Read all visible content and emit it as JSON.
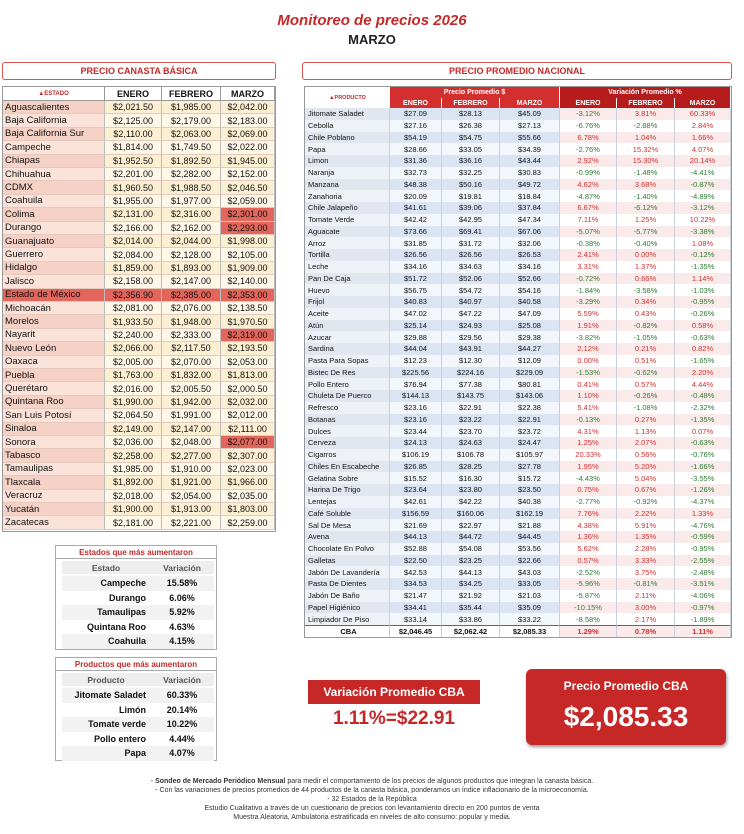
{
  "header": {
    "title": "Monitoreo de precios 2026",
    "subtitle": "MARZO"
  },
  "states_table": {
    "title": "PRECIO CANASTA BÁSICA",
    "columns": [
      "▲ESTADO",
      "ENERO",
      "FEBRERO",
      "MARZO"
    ],
    "rows": [
      [
        "Aguascalientes",
        "$2,021.50",
        "$1,985.00",
        "$2,042.00"
      ],
      [
        "Baja California",
        "$2,125.00",
        "$2,179.00",
        "$2,183.00"
      ],
      [
        "Baja California Sur",
        "$2,110.00",
        "$2,063.00",
        "$2,069.00"
      ],
      [
        "Campeche",
        "$1,814.00",
        "$1,749.50",
        "$2,022.00"
      ],
      [
        "Chiapas",
        "$1,952.50",
        "$1,892.50",
        "$1,945.00"
      ],
      [
        "Chihuahua",
        "$2,201.00",
        "$2,282.00",
        "$2,152.00"
      ],
      [
        "CDMX",
        "$1,960.50",
        "$1,988.50",
        "$2,046.50"
      ],
      [
        "Coahuila",
        "$1,955.00",
        "$1,977.00",
        "$2,059.00"
      ],
      [
        "Colima",
        "$2,131.00",
        "$2,316.00",
        "$2,301.00"
      ],
      [
        "Durango",
        "$2,166.00",
        "$2,162.00",
        "$2,293.00"
      ],
      [
        "Guanajuato",
        "$2,014.00",
        "$2,044.00",
        "$1,998.00"
      ],
      [
        "Guerrero",
        "$2,084.00",
        "$2,128.00",
        "$2,105.00"
      ],
      [
        "Hidalgo",
        "$1,859.00",
        "$1,893.00",
        "$1,909.00"
      ],
      [
        "Jalisco",
        "$2,158.00",
        "$2,147.00",
        "$2,140.00"
      ],
      [
        "Estado de México",
        "$2,356.90",
        "$2,385.00",
        "$2,353.00"
      ],
      [
        "Michoacán",
        "$2,081.00",
        "$2,076.00",
        "$2,138.50"
      ],
      [
        "Morelos",
        "$1,933.50",
        "$1,948.00",
        "$1,970.50"
      ],
      [
        "Nayarit",
        "$2,240.00",
        "$2,333.00",
        "$2,319.00"
      ],
      [
        "Nuevo León",
        "$2,066.00",
        "$2,117.50",
        "$2,193.50"
      ],
      [
        "Oaxaca",
        "$2,005.00",
        "$2,070.00",
        "$2,053.00"
      ],
      [
        "Puebla",
        "$1,763.00",
        "$1,832.00",
        "$1,813.00"
      ],
      [
        "Querétaro",
        "$2,016.00",
        "$2,005.50",
        "$2,000.50"
      ],
      [
        "Quintana Roo",
        "$1,990.00",
        "$1,942.00",
        "$2,032.00"
      ],
      [
        "San Luis Potosí",
        "$2,064.50",
        "$1,991.00",
        "$2,012.00"
      ],
      [
        "Sinaloa",
        "$2,149.00",
        "$2,147.00",
        "$2,111.00"
      ],
      [
        "Sonora",
        "$2,036.00",
        "$2,048.00",
        "$2,077.00"
      ],
      [
        "Tabasco",
        "$2,258.00",
        "$2,277.00",
        "$2,307.00"
      ],
      [
        "Tamaulipas",
        "$1,985.00",
        "$1,910.00",
        "$2,023.00"
      ],
      [
        "Tlaxcala",
        "$1,892.00",
        "$1,921.00",
        "$1,966.00"
      ],
      [
        "Veracruz",
        "$2,018.00",
        "$2,054.00",
        "$2,035.00"
      ],
      [
        "Yucatán",
        "$1,900.00",
        "$1,913.00",
        "$1,803.00"
      ],
      [
        "Zacatecas",
        "$2,181.00",
        "$2,221.00",
        "$2,259.00"
      ]
    ]
  },
  "national_table": {
    "title": "PRECIO PROMEDIO NACIONAL",
    "group_headers": [
      "Precio Promedio $",
      "Variación Promedio %"
    ],
    "columns": [
      "▲PRODUCTO",
      "ENERO",
      "FEBRERO",
      "MARZO",
      "ENERO",
      "FEBRERO",
      "MARZO"
    ],
    "rows": [
      [
        "Jitomate Saladet",
        "$27.09",
        "$28.13",
        "$45.09",
        "-3.12%",
        "3.81%",
        "60.33%"
      ],
      [
        "Cebolla",
        "$27.16",
        "$26.38",
        "$27.13",
        "-6.76%",
        "-2.88%",
        "2.84%"
      ],
      [
        "Chile Poblano",
        "$54.19",
        "$54.75",
        "$55.66",
        "6.78%",
        "1.04%",
        "1.66%"
      ],
      [
        "Papa",
        "$28.66",
        "$33.05",
        "$34.39",
        "-2.76%",
        "15.32%",
        "4.07%"
      ],
      [
        "Limon",
        "$31.36",
        "$36.16",
        "$43.44",
        "2.92%",
        "15.30%",
        "20.14%"
      ],
      [
        "Naranja",
        "$32.73",
        "$32.25",
        "$30.83",
        "-0.99%",
        "-1.48%",
        "-4.41%"
      ],
      [
        "Manzana",
        "$48.38",
        "$50.16",
        "$49.72",
        "4.62%",
        "3.68%",
        "-0.87%"
      ],
      [
        "Zanahoria",
        "$20.09",
        "$19.81",
        "$18.84",
        "-4.87%",
        "-1.40%",
        "-4.89%"
      ],
      [
        "Chile Jalapeño",
        "$41.61",
        "$39.06",
        "$37.84",
        "6.67%",
        "-6.12%",
        "-3.12%"
      ],
      [
        "Tomate Verde",
        "$42.42",
        "$42.95",
        "$47.34",
        "7.11%",
        "1.25%",
        "10.22%"
      ],
      [
        "Aguacate",
        "$73.66",
        "$69.41",
        "$67.06",
        "-5.07%",
        "-5.77%",
        "-3.38%"
      ],
      [
        "Arroz",
        "$31.85",
        "$31.72",
        "$32.06",
        "-0.38%",
        "-0.40%",
        "1.08%"
      ],
      [
        "Tortilla",
        "$26.56",
        "$26.56",
        "$26.53",
        "2.41%",
        "0.00%",
        "-0.12%"
      ],
      [
        "Leche",
        "$34.16",
        "$34.63",
        "$34.16",
        "3.31%",
        "1.37%",
        "-1.35%"
      ],
      [
        "Pan De Caja",
        "$51.72",
        "$52.06",
        "$52.66",
        "-0.72%",
        "0.66%",
        "1.14%"
      ],
      [
        "Huevo",
        "$56.75",
        "$54.72",
        "$54.16",
        "-1.84%",
        "-3.58%",
        "-1.03%"
      ],
      [
        "Frijol",
        "$40.83",
        "$40.97",
        "$40.58",
        "-3.29%",
        "0.34%",
        "-0.95%"
      ],
      [
        "Aceite",
        "$47.02",
        "$47.22",
        "$47.09",
        "5.59%",
        "0.43%",
        "-0.26%"
      ],
      [
        "Atún",
        "$25.14",
        "$24.93",
        "$25.08",
        "1.91%",
        "-0.82%",
        "0.58%"
      ],
      [
        "Azucar",
        "$29.88",
        "$29.56",
        "$29.38",
        "-3.82%",
        "-1.05%",
        "-0.63%"
      ],
      [
        "Sardina",
        "$44.04",
        "$43.91",
        "$44.27",
        "2.12%",
        "0.21%",
        "0.82%"
      ],
      [
        "Pasta Para Sopas",
        "$12.23",
        "$12.30",
        "$12.09",
        "0.00%",
        "0.51%",
        "-1.65%"
      ],
      [
        "Bistec De Res",
        "$225.56",
        "$224.16",
        "$229.09",
        "-1.53%",
        "-0.62%",
        "2.20%"
      ],
      [
        "Pollo Entero",
        "$76.94",
        "$77.38",
        "$80.81",
        "0.41%",
        "0.57%",
        "4.44%"
      ],
      [
        "Chuleta De Puerco",
        "$144.13",
        "$143.75",
        "$143.06",
        "1.10%",
        "-0.26%",
        "-0.48%"
      ],
      [
        "Refresco",
        "$23.16",
        "$22.91",
        "$22.38",
        "5.41%",
        "-1.08%",
        "-2.32%"
      ],
      [
        "Botanas",
        "$23.16",
        "$23.22",
        "$22.91",
        "-0.13%",
        "0.27%",
        "-1.35%"
      ],
      [
        "Dulces",
        "$23.44",
        "$23.70",
        "$23.72",
        "4.31%",
        "1.13%",
        "0.07%"
      ],
      [
        "Cerveza",
        "$24.13",
        "$24.63",
        "$24.47",
        "1.25%",
        "2.07%",
        "-0.63%"
      ],
      [
        "Cigarros",
        "$106.19",
        "$106.78",
        "$105.97",
        "20.33%",
        "0.56%",
        "-0.76%"
      ],
      [
        "Chiles En Escabeche",
        "$26.85",
        "$28.25",
        "$27.78",
        "1.95%",
        "5.20%",
        "-1.66%"
      ],
      [
        "Gelatina Sobre",
        "$15.52",
        "$16.30",
        "$15.72",
        "-4.43%",
        "5.04%",
        "-3.55%"
      ],
      [
        "Harina De Trigo",
        "$23.64",
        "$23.80",
        "$23.50",
        "0.75%",
        "0.67%",
        "-1.26%"
      ],
      [
        "Lentejas",
        "$42.61",
        "$42.22",
        "$40.38",
        "-2.77%",
        "-0.92%",
        "-4.37%"
      ],
      [
        "Café Soluble",
        "$156.59",
        "$160.06",
        "$162.19",
        "7.76%",
        "2.22%",
        "1.33%"
      ],
      [
        "Sal De Mesa",
        "$21.69",
        "$22.97",
        "$21.88",
        "4.38%",
        "5.91%",
        "-4.76%"
      ],
      [
        "Avena",
        "$44.13",
        "$44.72",
        "$44.45",
        "1.36%",
        "1.35%",
        "-0.59%"
      ],
      [
        "Chocolate En Polvo",
        "$52.88",
        "$54.08",
        "$53.56",
        "5.62%",
        "2.28%",
        "-0.95%"
      ],
      [
        "Galletas",
        "$22.50",
        "$23.25",
        "$22.66",
        "0.57%",
        "3.33%",
        "-2.55%"
      ],
      [
        "Jabón De Lavandería",
        "$42.53",
        "$44.13",
        "$43.03",
        "-2.52%",
        "3.75%",
        "-2.48%"
      ],
      [
        "Pasta De Dientes",
        "$34.53",
        "$34.25",
        "$33.05",
        "-5.96%",
        "-0.81%",
        "-3.51%"
      ],
      [
        "Jabón De Baño",
        "$21.47",
        "$21.92",
        "$21.03",
        "-5.87%",
        "2.11%",
        "-4.06%"
      ],
      [
        "Papel Higiénico",
        "$34.41",
        "$35.44",
        "$35.09",
        "-10.15%",
        "3.00%",
        "-0.97%"
      ],
      [
        "Limpiador De Piso",
        "$33.14",
        "$33.86",
        "$33.22",
        "-8.58%",
        "2.17%",
        "-1.89%"
      ],
      [
        "CBA",
        "$2,046.45",
        "$2,062.42",
        "$2,085.33",
        "1.29%",
        "0.78%",
        "1.11%"
      ]
    ]
  },
  "top_states": {
    "title": "Estados que más aumentaron",
    "columns": [
      "Estado",
      "Variación"
    ],
    "rows": [
      [
        "Campeche",
        "15.58%"
      ],
      [
        "Durango",
        "6.06%"
      ],
      [
        "Tamaulipas",
        "5.92%"
      ],
      [
        "Quintana Roo",
        "4.63%"
      ],
      [
        "Coahuila",
        "4.15%"
      ]
    ]
  },
  "top_products": {
    "title": "Productos que más aumentaron",
    "columns": [
      "Producto",
      "Variación"
    ],
    "rows": [
      [
        "Jitomate Saladet",
        "60.33%"
      ],
      [
        "Limón",
        "20.14%"
      ],
      [
        "Tomate verde",
        "10.22%"
      ],
      [
        "Pollo entero",
        "4.44%"
      ],
      [
        "Papa",
        "4.07%"
      ]
    ]
  },
  "variation_box": {
    "title": "Variación Promedio CBA",
    "value": "1.11%=$22.91"
  },
  "price_box": {
    "title": "Precio Promedio CBA",
    "value": "$2,085.33"
  },
  "footer": {
    "lead_prefix": "- ",
    "lead_bold": "Sondeo de Mercado Periódico Mensual",
    "lead_rest": " para medir el comportamiento de los precios de algunos productos que integran la canasta básica.",
    "lines": [
      "- Con las variaciones de precios promedios de 44 productos de la canasta básica, ponderamos un índice inflacionario de la microeconomía.",
      "- 32 Estados de la República",
      "Estudio Cualitativo a través de un cuestionario de precios con levantamiento directo en 200 puntos de venta",
      "Muestra Aleatoria, Ambulatoria estratificada en niveles de alto consumo: popular y media."
    ]
  }
}
